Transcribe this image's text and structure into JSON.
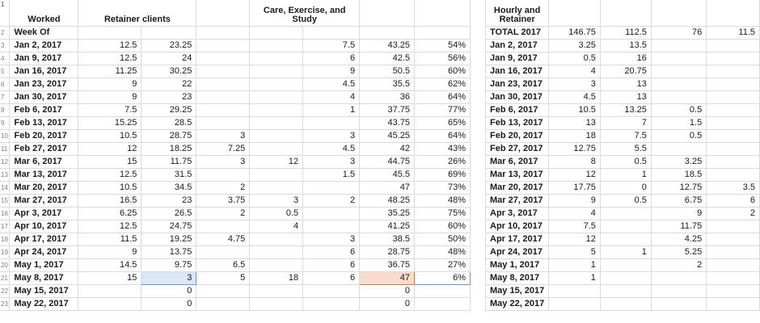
{
  "left_table": {
    "header_cells": [
      "Worked",
      "Retainer clients",
      "",
      "",
      "Care, Exercise, and Study",
      "",
      ""
    ],
    "header_row_number": "1",
    "rows": [
      {
        "n": "2",
        "c": [
          "Week Of",
          "",
          "",
          "",
          "",
          "",
          "",
          ""
        ]
      },
      {
        "n": "3",
        "c": [
          "Jan 2, 2017",
          "12.5",
          "23.25",
          "",
          "",
          "7.5",
          "43.25",
          "54%"
        ]
      },
      {
        "n": "4",
        "c": [
          "Jan 9, 2017",
          "12.5",
          "24",
          "",
          "",
          "6",
          "42.5",
          "56%"
        ]
      },
      {
        "n": "5",
        "c": [
          "Jan 16, 2017",
          "11.25",
          "30.25",
          "",
          "",
          "9",
          "50.5",
          "60%"
        ]
      },
      {
        "n": "6",
        "c": [
          "Jan 23, 2017",
          "9",
          "22",
          "",
          "",
          "4.5",
          "35.5",
          "62%"
        ]
      },
      {
        "n": "7",
        "c": [
          "Jan 30, 2017",
          "9",
          "23",
          "",
          "",
          "4",
          "36",
          "64%"
        ]
      },
      {
        "n": "8",
        "c": [
          "Feb 6, 2017",
          "7.5",
          "29.25",
          "",
          "",
          "1",
          "37.75",
          "77%"
        ]
      },
      {
        "n": "9",
        "c": [
          "Feb 13, 2017",
          "15.25",
          "28.5",
          "",
          "",
          "",
          "43.75",
          "65%"
        ]
      },
      {
        "n": "10",
        "c": [
          "Feb 20, 2017",
          "10.5",
          "28.75",
          "3",
          "",
          "3",
          "45.25",
          "64%"
        ]
      },
      {
        "n": "11",
        "c": [
          "Feb 27, 2017",
          "12",
          "18.25",
          "7.25",
          "",
          "4.5",
          "42",
          "43%"
        ]
      },
      {
        "n": "12",
        "c": [
          "Mar 6, 2017",
          "15",
          "11.75",
          "3",
          "12",
          "3",
          "44.75",
          "26%"
        ]
      },
      {
        "n": "13",
        "c": [
          "Mar 13, 2017",
          "12.5",
          "31.5",
          "",
          "",
          "1.5",
          "45.5",
          "69%"
        ]
      },
      {
        "n": "14",
        "c": [
          "Mar 20, 2017",
          "10.5",
          "34.5",
          "2",
          "",
          "",
          "47",
          "73%"
        ]
      },
      {
        "n": "15",
        "c": [
          "Mar 27, 2017",
          "16.5",
          "23",
          "3.75",
          "3",
          "2",
          "48.25",
          "48%"
        ]
      },
      {
        "n": "16",
        "c": [
          "Apr 3, 2017",
          "6.25",
          "26.5",
          "2",
          "0.5",
          "",
          "35.25",
          "75%"
        ]
      },
      {
        "n": "17",
        "c": [
          "Apr 10, 2017",
          "12.5",
          "24.75",
          "",
          "4",
          "",
          "41.25",
          "60%"
        ]
      },
      {
        "n": "18",
        "c": [
          "Apr 17, 2017",
          "11.5",
          "19.25",
          "4.75",
          "",
          "3",
          "38.5",
          "50%"
        ]
      },
      {
        "n": "19",
        "c": [
          "Apr 24, 2017",
          "9",
          "13.75",
          "",
          "",
          "6",
          "28.75",
          "48%"
        ]
      },
      {
        "n": "20",
        "c": [
          "May 1, 2017",
          "14.5",
          "9.75",
          "6.5",
          "",
          "6",
          "36.75",
          "27%"
        ]
      },
      {
        "n": "21",
        "c": [
          "May 8, 2017",
          "15",
          "3",
          "5",
          "18",
          "6",
          "47",
          "6%"
        ]
      },
      {
        "n": "22",
        "c": [
          "May 15, 2017",
          "",
          "0",
          "",
          "",
          "",
          "0",
          ""
        ]
      },
      {
        "n": "23",
        "c": [
          "May 22, 2017",
          "",
          "0",
          "",
          "",
          "",
          "0",
          ""
        ]
      }
    ]
  },
  "right_table": {
    "header_cells": [
      "Hourly and Retainer",
      "",
      "",
      "",
      ""
    ],
    "rows": [
      {
        "c": [
          "TOTAL 2017",
          "146.75",
          "112.5",
          "76",
          "11.5"
        ]
      },
      {
        "c": [
          "Jan 2, 2017",
          "3.25",
          "13.5",
          "",
          ""
        ]
      },
      {
        "c": [
          "Jan 9, 2017",
          "0.5",
          "16",
          "",
          ""
        ]
      },
      {
        "c": [
          "Jan 16, 2017",
          "4",
          "20.75",
          "",
          ""
        ]
      },
      {
        "c": [
          "Jan 23, 2017",
          "3",
          "13",
          "",
          ""
        ]
      },
      {
        "c": [
          "Jan 30, 2017",
          "4.5",
          "13",
          "",
          ""
        ]
      },
      {
        "c": [
          "Feb 6, 2017",
          "10.5",
          "13.25",
          "0.5",
          ""
        ]
      },
      {
        "c": [
          "Feb 13, 2017",
          "13",
          "7",
          "1.5",
          ""
        ]
      },
      {
        "c": [
          "Feb 20, 2017",
          "18",
          "7.5",
          "0.5",
          ""
        ]
      },
      {
        "c": [
          "Feb 27, 2017",
          "12.75",
          "5.5",
          "",
          ""
        ]
      },
      {
        "c": [
          "Mar 6, 2017",
          "8",
          "0.5",
          "3.25",
          ""
        ]
      },
      {
        "c": [
          "Mar 13, 2017",
          "12",
          "1",
          "18.5",
          ""
        ]
      },
      {
        "c": [
          "Mar 20, 2017",
          "17.75",
          "0",
          "12.75",
          "3.5"
        ]
      },
      {
        "c": [
          "Mar 27, 2017",
          "9",
          "0.5",
          "6.75",
          "6"
        ]
      },
      {
        "c": [
          "Apr 3, 2017",
          "4",
          "",
          "9",
          "2"
        ]
      },
      {
        "c": [
          "Apr 10, 2017",
          "7.5",
          "",
          "11.75",
          ""
        ]
      },
      {
        "c": [
          "Apr 17, 2017",
          "12",
          "",
          "4.25",
          ""
        ]
      },
      {
        "c": [
          "Apr 24, 2017",
          "5",
          "1",
          "5.25",
          ""
        ]
      },
      {
        "c": [
          "May 1, 2017",
          "1",
          "",
          "2",
          ""
        ]
      },
      {
        "c": [
          "May 8, 2017",
          "1",
          "",
          "",
          ""
        ]
      },
      {
        "c": [
          "May 15, 2017",
          "",
          "",
          "",
          ""
        ]
      },
      {
        "c": [
          "May 22, 2017",
          "",
          "",
          "",
          ""
        ]
      }
    ]
  },
  "selection": {
    "row": "21",
    "column": "retainer-clients",
    "color": "#dbe6f7"
  },
  "highlight_colors": {
    "selected_cell": "#dbe6f7",
    "orange_cell": "#f7dccd",
    "selection_border": "#6f95d6"
  }
}
